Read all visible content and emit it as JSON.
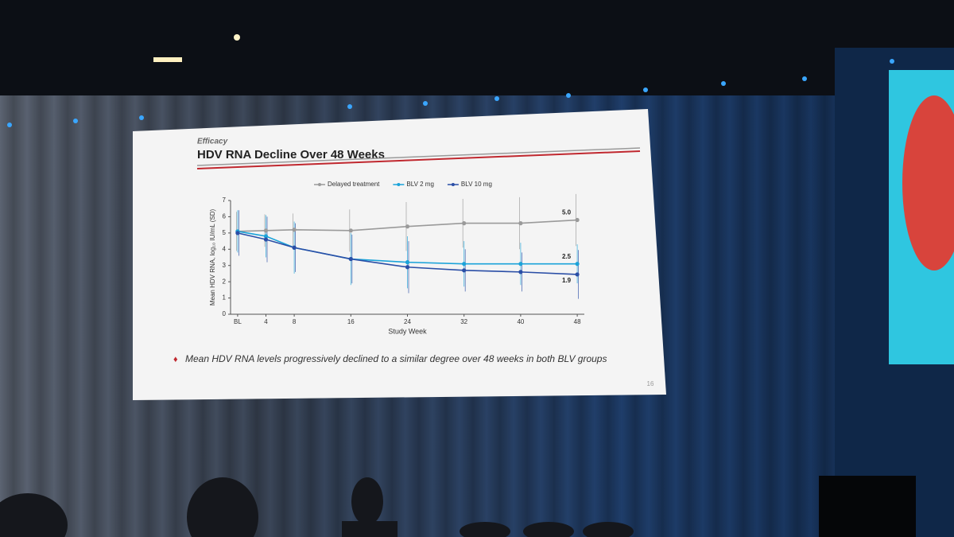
{
  "slide": {
    "section": "Efficacy",
    "title": "HDV RNA Decline Over 48 Weeks",
    "bullet": "Mean HDV RNA levels progressively declined to a similar degree over 48 weeks in both BLV groups",
    "page_number": "16"
  },
  "chart_data": {
    "type": "line",
    "x_label": "Study Week",
    "y_label": "Mean HDV RNA, log₁₀ IU/mL (SD)",
    "x": [
      0,
      4,
      8,
      16,
      24,
      32,
      40,
      48
    ],
    "xlim": [
      -1,
      49
    ],
    "xticks": [
      {
        "value": 0,
        "label": "BL"
      },
      4,
      8,
      16,
      24,
      32,
      40,
      48
    ],
    "ylim": [
      0,
      7
    ],
    "yticks": [
      0,
      1,
      2,
      3,
      4,
      5,
      6,
      7
    ],
    "series": [
      {
        "name": "Delayed treatment",
        "color": "#9a9a9a",
        "values": [
          5.1,
          5.15,
          5.2,
          5.15,
          5.4,
          5.6,
          5.6,
          5.8
        ],
        "errors": [
          1.2,
          1.0,
          1.0,
          1.3,
          1.5,
          1.5,
          1.6,
          1.6
        ]
      },
      {
        "name": "BLV 2 mg",
        "color": "#1ba3d9",
        "values": [
          5.1,
          4.8,
          4.1,
          3.4,
          3.2,
          3.1,
          3.1,
          3.1
        ],
        "errors": [
          1.3,
          1.3,
          1.6,
          1.6,
          1.6,
          1.4,
          1.3,
          1.2
        ]
      },
      {
        "name": "BLV 10 mg",
        "color": "#2a4ea6",
        "values": [
          5.0,
          4.6,
          4.1,
          3.4,
          2.9,
          2.7,
          2.6,
          2.45
        ],
        "errors": [
          1.4,
          1.4,
          1.5,
          1.5,
          1.6,
          1.3,
          1.2,
          1.5
        ]
      }
    ],
    "annotations": [
      "5.0",
      "2.5",
      "1.9"
    ],
    "legend": "top"
  }
}
